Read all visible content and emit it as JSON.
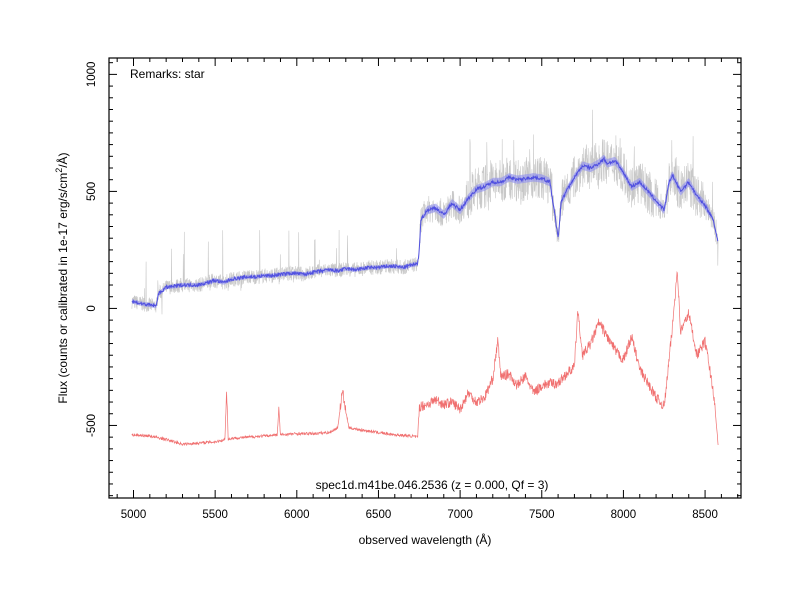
{
  "chart_data": {
    "type": "line",
    "remark": "Remarks: star",
    "footer": "spec1d.m41be.046.2536 (z = 0.000, Qf = 3)",
    "xlabel": "observed wavelength (Å)",
    "ylabel_main": "Flux (counts or calibrated in 1e-17 erg/s/cm",
    "ylabel_sup": "2",
    "ylabel_end": "/Å)",
    "xlim": [
      4850,
      8720
    ],
    "ylim": [
      -810,
      1070
    ],
    "x_ticks": [
      5000,
      5500,
      6000,
      6500,
      7000,
      7500,
      8000,
      8500
    ],
    "x_tick_labels": [
      "5000",
      "5500",
      "6000",
      "6500",
      "7000",
      "7500",
      "8000",
      "8500"
    ],
    "y_ticks": [
      -500,
      0,
      500,
      1000
    ],
    "y_tick_labels": [
      "-500",
      "0",
      "500",
      "1000"
    ],
    "x_minor_step": 100,
    "y_minor_step": 50,
    "colors": {
      "raw": "#c8c8c8",
      "smoothed": "#5050e0",
      "smoothed_band": "#9090f0",
      "error": "#f07070"
    },
    "series": [
      {
        "key": "smoothed",
        "x": [
          4990,
          5050,
          5140,
          5150,
          5200,
          5300,
          5400,
          5450,
          5500,
          5550,
          5600,
          5650,
          5700,
          5750,
          5800,
          5850,
          5900,
          5950,
          6000,
          6050,
          6100,
          6150,
          6200,
          6250,
          6300,
          6350,
          6400,
          6450,
          6500,
          6550,
          6600,
          6650,
          6700,
          6740,
          6750,
          6760,
          6800,
          6850,
          6900,
          6950,
          7000,
          7050,
          7100,
          7150,
          7200,
          7250,
          7300,
          7350,
          7400,
          7450,
          7500,
          7550,
          7580,
          7600,
          7620,
          7650,
          7700,
          7750,
          7800,
          7850,
          7880,
          7900,
          7950,
          8000,
          8050,
          8100,
          8150,
          8200,
          8250,
          8280,
          8300,
          8350,
          8400,
          8450,
          8500,
          8550,
          8580
        ],
        "y": [
          30,
          20,
          10,
          60,
          90,
          100,
          100,
          110,
          120,
          110,
          125,
          130,
          135,
          135,
          140,
          140,
          145,
          150,
          150,
          145,
          155,
          160,
          165,
          160,
          170,
          165,
          170,
          175,
          175,
          180,
          180,
          175,
          185,
          190,
          250,
          380,
          420,
          430,
          400,
          450,
          420,
          470,
          510,
          520,
          540,
          540,
          560,
          550,
          555,
          560,
          555,
          540,
          400,
          300,
          460,
          500,
          560,
          610,
          600,
          620,
          640,
          620,
          630,
          580,
          520,
          540,
          500,
          460,
          420,
          540,
          570,
          500,
          540,
          480,
          440,
          380,
          280
        ]
      },
      {
        "key": "error",
        "x": [
          4990,
          5100,
          5200,
          5300,
          5400,
          5500,
          5560,
          5570,
          5580,
          5600,
          5700,
          5800,
          5880,
          5890,
          5900,
          6000,
          6100,
          6200,
          6250,
          6280,
          6300,
          6320,
          6400,
          6500,
          6600,
          6700,
          6740,
          6750,
          6800,
          6850,
          6900,
          6950,
          7000,
          7050,
          7100,
          7150,
          7200,
          7230,
          7250,
          7300,
          7350,
          7400,
          7450,
          7500,
          7550,
          7600,
          7650,
          7700,
          7720,
          7750,
          7800,
          7850,
          7900,
          7950,
          8000,
          8050,
          8100,
          8150,
          8200,
          8250,
          8300,
          8330,
          8350,
          8400,
          8450,
          8500,
          8550,
          8580
        ],
        "y": [
          -540,
          -545,
          -560,
          -580,
          -575,
          -570,
          -560,
          -340,
          -560,
          -555,
          -550,
          -545,
          -540,
          -430,
          -540,
          -535,
          -535,
          -530,
          -510,
          -350,
          -440,
          -510,
          -520,
          -530,
          -540,
          -545,
          -550,
          -420,
          -410,
          -390,
          -410,
          -400,
          -430,
          -360,
          -400,
          -380,
          -300,
          -140,
          -290,
          -280,
          -330,
          -290,
          -360,
          -330,
          -320,
          -320,
          -280,
          -250,
          -10,
          -200,
          -150,
          -60,
          -120,
          -180,
          -220,
          -120,
          -260,
          -320,
          -380,
          -420,
          -80,
          170,
          -100,
          -20,
          -200,
          -140,
          -350,
          -580
        ]
      }
    ]
  }
}
